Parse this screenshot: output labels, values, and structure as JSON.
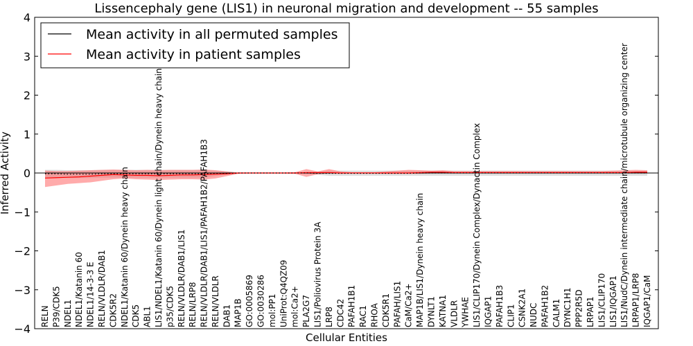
{
  "chart_data": {
    "type": "line",
    "title": "Lissencephaly gene (LIS1) in neuronal migration and development -- 55 samples",
    "xlabel": "Cellular Entities",
    "ylabel": "Inferred Activity",
    "ylim": [
      -4,
      4
    ],
    "yticks": [
      -4,
      -3,
      -2,
      -1,
      0,
      1,
      2,
      3,
      4
    ],
    "ytick_labels": [
      "−4",
      "−3",
      "−2",
      "−1",
      "0",
      "1",
      "2",
      "3",
      "4"
    ],
    "legend_position": "upper-left",
    "categories": [
      "RELN",
      "P39/CDK5",
      "NDEL1",
      "NDEL1/Katanin 60",
      "NDEL1/14-3-3 E",
      "RELN/VLDLR/DAB1",
      "CDK5R2",
      "NDEL1/Katanin 60/Dynein heavy chain",
      "CDK5",
      "ABL1",
      "LIS1/NDEL1/Katanin 60/Dynein light chain/Dynein heavy chain",
      "p35/CDK5",
      "RELN/VLDLR/DAB1/LIS1",
      "RELN/LRP8",
      "RELN/VLDLR/DAB1/LIS1/PAFAH1B2/PAFAH1B3",
      "RELN/VLDLR",
      "DAB1",
      "MAP1B",
      "GO:0005869",
      "GO:0030286",
      "mol:PP1",
      "UniProt:Q4QZ09",
      "mol:Ca2+",
      "PLA2G7",
      "LIS1/Poliovirus Protein 3A",
      "LRP8",
      "CDC42",
      "PAFAH1B1",
      "RAC1",
      "RHOA",
      "CDK5R1",
      "PAFAH/LIS1",
      "CaM/Ca2+",
      "MAP1B/LIS1/Dynein heavy chain",
      "DYNLT1",
      "KATNA1",
      "VLDLR",
      "YWHAE",
      "LIS1/CLIP170/Dynein Complex/Dynactin Complex",
      "IQGAP1",
      "PAFAH1B3",
      "CLIP1",
      "CSNK2A1",
      "NUDC",
      "PAFAH1B2",
      "CALM1",
      "DYNC1H1",
      "PPP2R5D",
      "LRPAP1",
      "LIS1/CLIP170",
      "LIS1/IQGAP1",
      "LIS1/NudC/Dynein intermediate chain/microtubule organizing center",
      "LRPAP1/LRP8",
      "IQGAP1/CaM"
    ],
    "series": [
      {
        "name": "Mean activity in all permuted samples",
        "color": "#000000",
        "style": "dotted",
        "values": [
          -0.02,
          -0.02,
          -0.03,
          -0.03,
          -0.03,
          -0.02,
          -0.02,
          -0.02,
          -0.02,
          -0.02,
          -0.02,
          -0.02,
          -0.02,
          -0.02,
          -0.02,
          -0.01,
          -0.01,
          0,
          0,
          0,
          0,
          0,
          0,
          0,
          -0.01,
          -0.01,
          -0.01,
          -0.01,
          -0.01,
          -0.01,
          -0.01,
          -0.01,
          -0.01,
          0,
          0,
          0,
          0,
          0,
          0,
          0,
          0,
          0,
          0,
          0,
          0,
          0,
          0,
          0,
          0,
          0,
          0,
          0,
          0,
          0
        ],
        "band_lower": [
          -0.12,
          -0.12,
          -0.13,
          -0.13,
          -0.13,
          -0.12,
          -0.12,
          -0.12,
          -0.12,
          -0.12,
          -0.12,
          -0.12,
          -0.12,
          -0.12,
          -0.12,
          -0.08,
          -0.05,
          -0.02,
          -0.02,
          -0.02,
          -0.02,
          -0.02,
          -0.02,
          -0.02,
          -0.05,
          -0.07,
          -0.07,
          -0.07,
          -0.07,
          -0.07,
          -0.07,
          -0.07,
          -0.07,
          -0.07,
          -0.07,
          -0.07,
          -0.07,
          -0.07,
          -0.07,
          -0.07,
          -0.07,
          -0.07,
          -0.07,
          -0.07,
          -0.07,
          -0.07,
          -0.07,
          -0.07,
          -0.07,
          -0.07,
          -0.07,
          -0.07,
          -0.07,
          -0.07
        ],
        "band_upper": [
          0.08,
          0.08,
          0.07,
          0.07,
          0.07,
          0.08,
          0.08,
          0.08,
          0.08,
          0.08,
          0.08,
          0.08,
          0.08,
          0.08,
          0.08,
          0.06,
          0.04,
          0.02,
          0.02,
          0.02,
          0.02,
          0.02,
          0.02,
          0.02,
          0.04,
          0.06,
          0.06,
          0.06,
          0.06,
          0.06,
          0.06,
          0.06,
          0.06,
          0.06,
          0.06,
          0.06,
          0.06,
          0.06,
          0.06,
          0.06,
          0.06,
          0.06,
          0.06,
          0.06,
          0.06,
          0.06,
          0.06,
          0.06,
          0.06,
          0.06,
          0.06,
          0.06,
          0.06,
          0.06
        ]
      },
      {
        "name": "Mean activity in patient samples",
        "color": "#ff0000",
        "style": "solid",
        "values": [
          -0.13,
          -0.12,
          -0.11,
          -0.1,
          -0.08,
          -0.06,
          -0.04,
          -0.05,
          -0.06,
          -0.06,
          -0.07,
          -0.06,
          -0.05,
          -0.05,
          -0.04,
          -0.03,
          -0.02,
          0,
          0,
          0,
          0,
          0,
          0,
          0.01,
          0.01,
          0.01,
          0,
          0,
          0,
          0,
          0,
          0,
          0,
          0.01,
          0.02,
          0.02,
          0.01,
          0.01,
          0.01,
          0.01,
          0.01,
          0.01,
          0.01,
          0.01,
          0.01,
          0.01,
          0.01,
          0.01,
          0.01,
          0.01,
          0.01,
          0.01,
          0.02,
          0.02
        ],
        "band_lower": [
          -0.36,
          -0.32,
          -0.28,
          -0.26,
          -0.24,
          -0.2,
          -0.16,
          -0.14,
          -0.16,
          -0.17,
          -0.18,
          -0.17,
          -0.16,
          -0.16,
          -0.17,
          -0.14,
          -0.08,
          -0.02,
          -0.01,
          -0.01,
          -0.01,
          -0.01,
          -0.02,
          -0.1,
          -0.03,
          -0.01,
          -0.02,
          -0.01,
          -0.01,
          -0.01,
          -0.02,
          -0.02,
          -0.02,
          -0.02,
          -0.01,
          -0.01,
          -0.01,
          -0.01,
          -0.01,
          -0.01,
          -0.01,
          -0.01,
          -0.01,
          -0.01,
          -0.01,
          -0.01,
          -0.01,
          -0.01,
          -0.01,
          -0.01,
          -0.01,
          -0.01,
          -0.01,
          -0.01
        ],
        "band_upper": [
          0.06,
          0.05,
          0.05,
          0.06,
          0.07,
          0.08,
          0.09,
          0.08,
          0.07,
          0.08,
          0.07,
          0.08,
          0.08,
          0.08,
          0.09,
          0.07,
          0.04,
          0.01,
          0.01,
          0.01,
          0.01,
          0.01,
          0.02,
          0.1,
          0.04,
          0.1,
          0.04,
          0.02,
          0.02,
          0.02,
          0.04,
          0.06,
          0.08,
          0.07,
          0.06,
          0.07,
          0.05,
          0.05,
          0.05,
          0.05,
          0.05,
          0.05,
          0.05,
          0.05,
          0.05,
          0.05,
          0.05,
          0.05,
          0.05,
          0.05,
          0.06,
          0.07,
          0.08,
          0.07
        ]
      }
    ]
  }
}
